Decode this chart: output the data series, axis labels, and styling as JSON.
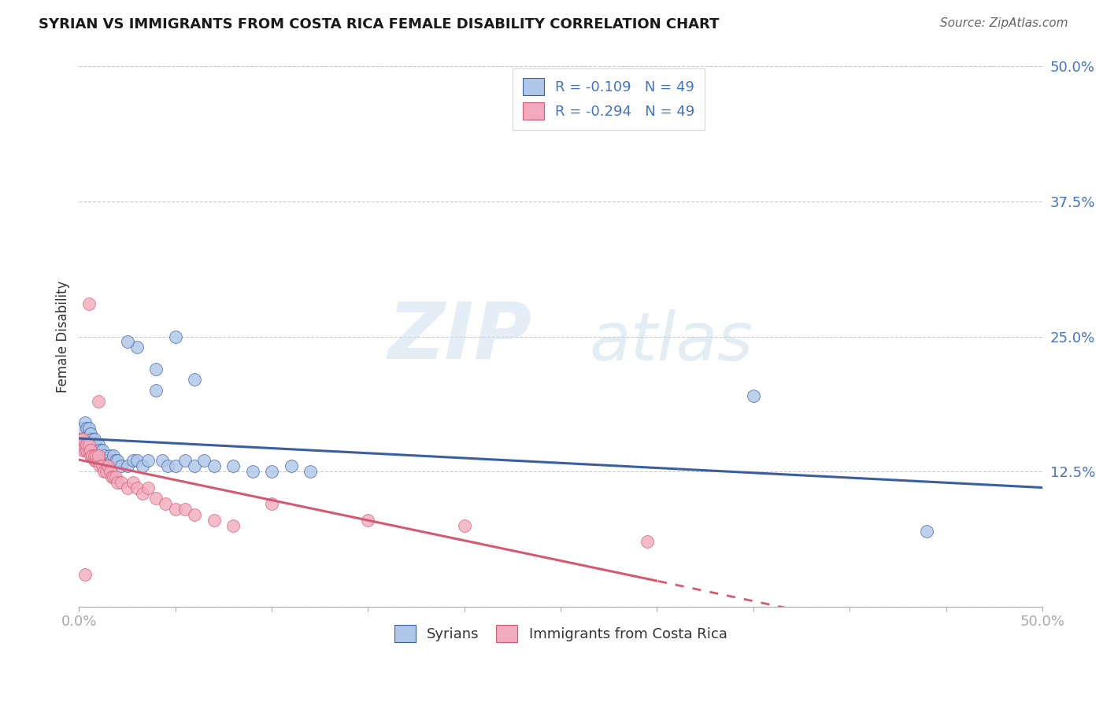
{
  "title": "SYRIAN VS IMMIGRANTS FROM COSTA RICA FEMALE DISABILITY CORRELATION CHART",
  "source": "Source: ZipAtlas.com",
  "ylabel": "Female Disability",
  "xlim": [
    0,
    0.5
  ],
  "ylim": [
    0,
    0.5
  ],
  "yticks": [
    0.0,
    0.125,
    0.25,
    0.375,
    0.5
  ],
  "ytick_labels": [
    "",
    "12.5%",
    "25.0%",
    "37.5%",
    "50.0%"
  ],
  "xtick_vals": [
    0.0,
    0.05,
    0.1,
    0.15,
    0.2,
    0.25,
    0.3,
    0.35,
    0.4,
    0.45,
    0.5
  ],
  "color_syrian": "#aec6e8",
  "color_costarica": "#f2abbe",
  "color_line_syrian": "#3A5FA0",
  "color_line_costarica": "#d45a72",
  "color_tick_labels": "#4472c4",
  "color_grid": "#c8c8c8",
  "watermark_zip": "ZIP",
  "watermark_atlas": "atlas",
  "legend_r1": "-0.109",
  "legend_n1": "49",
  "legend_r2": "-0.294",
  "legend_n2": "49",
  "syrians_x": [
    0.002,
    0.003,
    0.004,
    0.005,
    0.005,
    0.006,
    0.006,
    0.007,
    0.008,
    0.008,
    0.009,
    0.009,
    0.01,
    0.011,
    0.012,
    0.013,
    0.014,
    0.015,
    0.016,
    0.017,
    0.018,
    0.019,
    0.02,
    0.022,
    0.025,
    0.028,
    0.03,
    0.033,
    0.036,
    0.04,
    0.043,
    0.046,
    0.05,
    0.055,
    0.06,
    0.065,
    0.07,
    0.08,
    0.09,
    0.1,
    0.11,
    0.12,
    0.05,
    0.04,
    0.03,
    0.025,
    0.06,
    0.35,
    0.44
  ],
  "syrians_y": [
    0.165,
    0.17,
    0.165,
    0.16,
    0.165,
    0.155,
    0.16,
    0.155,
    0.15,
    0.155,
    0.15,
    0.145,
    0.15,
    0.145,
    0.145,
    0.14,
    0.135,
    0.135,
    0.14,
    0.135,
    0.14,
    0.135,
    0.135,
    0.13,
    0.13,
    0.135,
    0.135,
    0.13,
    0.135,
    0.2,
    0.135,
    0.13,
    0.13,
    0.135,
    0.13,
    0.135,
    0.13,
    0.13,
    0.125,
    0.125,
    0.13,
    0.125,
    0.25,
    0.22,
    0.24,
    0.245,
    0.21,
    0.195,
    0.07
  ],
  "costarica_x": [
    0.001,
    0.002,
    0.002,
    0.003,
    0.003,
    0.004,
    0.004,
    0.005,
    0.005,
    0.006,
    0.006,
    0.007,
    0.007,
    0.008,
    0.008,
    0.009,
    0.009,
    0.01,
    0.01,
    0.011,
    0.012,
    0.013,
    0.014,
    0.015,
    0.016,
    0.017,
    0.018,
    0.019,
    0.02,
    0.022,
    0.025,
    0.028,
    0.03,
    0.033,
    0.036,
    0.04,
    0.045,
    0.05,
    0.055,
    0.06,
    0.07,
    0.08,
    0.1,
    0.15,
    0.2,
    0.005,
    0.01,
    0.295,
    0.003
  ],
  "costarica_y": [
    0.155,
    0.145,
    0.155,
    0.145,
    0.15,
    0.145,
    0.15,
    0.145,
    0.15,
    0.14,
    0.145,
    0.14,
    0.14,
    0.135,
    0.14,
    0.135,
    0.14,
    0.135,
    0.14,
    0.13,
    0.13,
    0.125,
    0.125,
    0.13,
    0.125,
    0.12,
    0.12,
    0.12,
    0.115,
    0.115,
    0.11,
    0.115,
    0.11,
    0.105,
    0.11,
    0.1,
    0.095,
    0.09,
    0.09,
    0.085,
    0.08,
    0.075,
    0.095,
    0.08,
    0.075,
    0.28,
    0.19,
    0.06,
    0.03
  ]
}
